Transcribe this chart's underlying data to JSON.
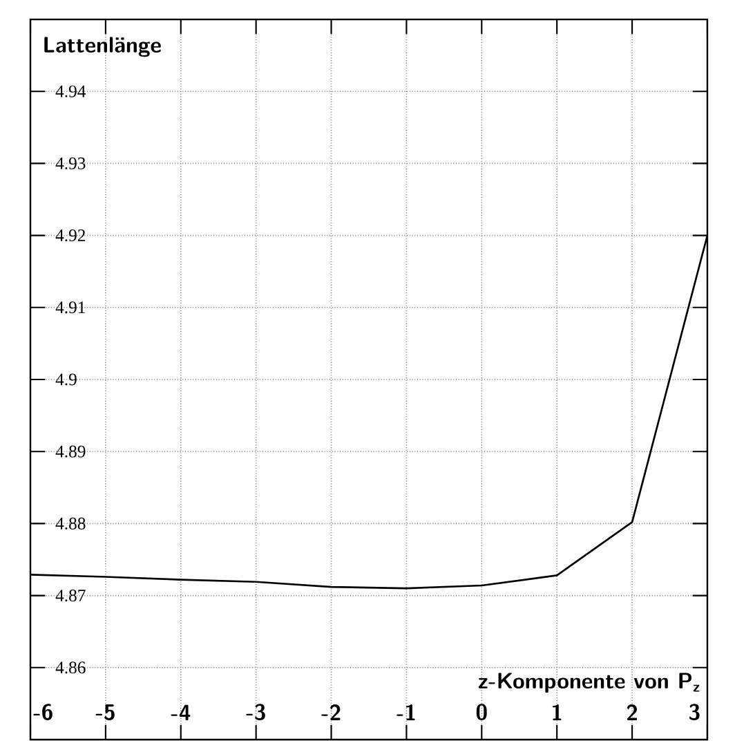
{
  "chart_data": {
    "type": "line",
    "xlabel": "z-Komponente von P$_{z}$",
    "ylabel": "Lattenlänge",
    "x": [
      -6,
      -5,
      -4,
      -3,
      -2,
      -1,
      0,
      1,
      2,
      3
    ],
    "series": [
      {
        "color": "#000000",
        "values": [
          4.8729,
          4.8726,
          4.8722,
          4.8719,
          4.8712,
          4.871,
          4.8714,
          4.8728,
          4.8802,
          4.92
        ]
      }
    ],
    "xlim": [
      -6,
      3
    ],
    "ylim": [
      4.85,
      4.95
    ],
    "xticks": [
      -6,
      -5,
      -4,
      -3,
      -2,
      -1,
      0,
      1,
      2,
      3
    ],
    "yticks": [
      4.86,
      4.87,
      4.88,
      4.89,
      4.9,
      4.91,
      4.92,
      4.93,
      4.94
    ],
    "grid": true,
    "marker": "none",
    "line_style": "solid"
  }
}
